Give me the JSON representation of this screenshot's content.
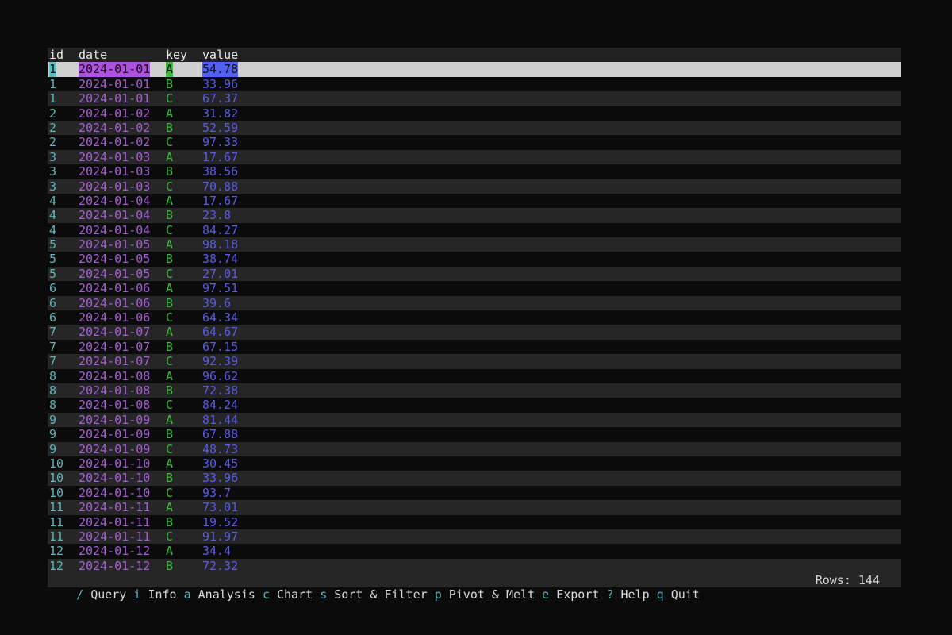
{
  "columns": [
    "id",
    "date",
    "key",
    "value"
  ],
  "rows": [
    [
      "1",
      "2024-01-01",
      "A",
      "54.78"
    ],
    [
      "1",
      "2024-01-01",
      "B",
      "33.96"
    ],
    [
      "1",
      "2024-01-01",
      "C",
      "67.37"
    ],
    [
      "2",
      "2024-01-02",
      "A",
      "31.82"
    ],
    [
      "2",
      "2024-01-02",
      "B",
      "52.59"
    ],
    [
      "2",
      "2024-01-02",
      "C",
      "97.33"
    ],
    [
      "3",
      "2024-01-03",
      "A",
      "17.67"
    ],
    [
      "3",
      "2024-01-03",
      "B",
      "38.56"
    ],
    [
      "3",
      "2024-01-03",
      "C",
      "70.88"
    ],
    [
      "4",
      "2024-01-04",
      "A",
      "17.67"
    ],
    [
      "4",
      "2024-01-04",
      "B",
      "23.8"
    ],
    [
      "4",
      "2024-01-04",
      "C",
      "84.27"
    ],
    [
      "5",
      "2024-01-05",
      "A",
      "98.18"
    ],
    [
      "5",
      "2024-01-05",
      "B",
      "38.74"
    ],
    [
      "5",
      "2024-01-05",
      "C",
      "27.01"
    ],
    [
      "6",
      "2024-01-06",
      "A",
      "97.51"
    ],
    [
      "6",
      "2024-01-06",
      "B",
      "39.6"
    ],
    [
      "6",
      "2024-01-06",
      "C",
      "64.34"
    ],
    [
      "7",
      "2024-01-07",
      "A",
      "64.67"
    ],
    [
      "7",
      "2024-01-07",
      "B",
      "67.15"
    ],
    [
      "7",
      "2024-01-07",
      "C",
      "92.39"
    ],
    [
      "8",
      "2024-01-08",
      "A",
      "96.62"
    ],
    [
      "8",
      "2024-01-08",
      "B",
      "72.38"
    ],
    [
      "8",
      "2024-01-08",
      "C",
      "84.24"
    ],
    [
      "9",
      "2024-01-09",
      "A",
      "81.44"
    ],
    [
      "9",
      "2024-01-09",
      "B",
      "67.88"
    ],
    [
      "9",
      "2024-01-09",
      "C",
      "48.73"
    ],
    [
      "10",
      "2024-01-10",
      "A",
      "30.45"
    ],
    [
      "10",
      "2024-01-10",
      "B",
      "33.96"
    ],
    [
      "10",
      "2024-01-10",
      "C",
      "93.7"
    ],
    [
      "11",
      "2024-01-11",
      "A",
      "73.01"
    ],
    [
      "11",
      "2024-01-11",
      "B",
      "19.52"
    ],
    [
      "11",
      "2024-01-11",
      "C",
      "91.97"
    ],
    [
      "12",
      "2024-01-12",
      "A",
      "34.4"
    ],
    [
      "12",
      "2024-01-12",
      "B",
      "72.32"
    ]
  ],
  "selected_row": 0,
  "shortcuts": [
    {
      "key": "/",
      "label": "Query"
    },
    {
      "key": "i",
      "label": "Info"
    },
    {
      "key": "a",
      "label": "Analysis"
    },
    {
      "key": "c",
      "label": "Chart"
    },
    {
      "key": "s",
      "label": "Sort & Filter"
    },
    {
      "key": "p",
      "label": "Pivot & Melt"
    },
    {
      "key": "e",
      "label": "Export"
    },
    {
      "key": "?",
      "label": "Help"
    },
    {
      "key": "q",
      "label": "Quit"
    }
  ],
  "status": {
    "rows": "Rows: 144"
  },
  "colors": {
    "id": "#5cb6bd",
    "date": "#a55fd6",
    "key": "#3cb83c",
    "value": "#5b5be6"
  }
}
